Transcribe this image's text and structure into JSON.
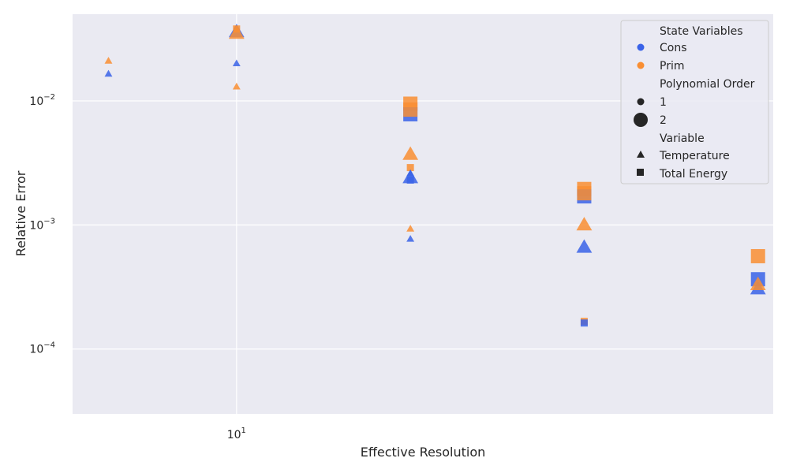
{
  "chart_data": {
    "type": "scatter",
    "xlabel": "Effective Resolution",
    "ylabel": "Relative Error",
    "x_scale": "log",
    "y_scale": "log",
    "xlim": [
      5.2,
      85
    ],
    "ylim": [
      3e-05,
      0.05
    ],
    "x_major_ticks": [
      {
        "value": 10,
        "base": "10",
        "exp": "1"
      }
    ],
    "y_major_ticks": [
      {
        "value": 0.01,
        "base": "10",
        "exp": "−2"
      },
      {
        "value": 0.001,
        "base": "10",
        "exp": "−3"
      },
      {
        "value": 0.0001,
        "base": "10",
        "exp": "−4"
      }
    ],
    "grid": true,
    "legend_position": "top-right",
    "colors": {
      "Cons": "#3a63e8",
      "Prim": "#f98e32",
      "background": "#eaeaf2",
      "grid": "#ffffff"
    },
    "legend": {
      "state_title": "State Variables",
      "state_items": [
        "Cons",
        "Prim"
      ],
      "order_title": "Polynomial Order",
      "order_items": [
        "1",
        "2"
      ],
      "variable_title": "Variable",
      "variable_items": [
        "Temperature",
        "Total Energy"
      ]
    },
    "points": [
      {
        "x": 6,
        "y": 0.0165,
        "state": "Cons",
        "order": 1,
        "variable": "Temperature"
      },
      {
        "x": 6,
        "y": 0.021,
        "state": "Prim",
        "order": 1,
        "variable": "Temperature"
      },
      {
        "x": 10,
        "y": 0.02,
        "state": "Cons",
        "order": 1,
        "variable": "Temperature"
      },
      {
        "x": 10,
        "y": 0.013,
        "state": "Prim",
        "order": 1,
        "variable": "Temperature"
      },
      {
        "x": 10,
        "y": 0.036,
        "state": "Cons",
        "order": 2,
        "variable": "Temperature"
      },
      {
        "x": 10,
        "y": 0.035,
        "state": "Prim",
        "order": 2,
        "variable": "Temperature"
      },
      {
        "x": 10,
        "y": 0.038,
        "state": "Prim",
        "order": 1,
        "variable": "Total Energy"
      },
      {
        "x": 20,
        "y": 0.0095,
        "state": "Prim",
        "order": 2,
        "variable": "Total Energy"
      },
      {
        "x": 20,
        "y": 0.0078,
        "state": "Cons",
        "order": 2,
        "variable": "Total Energy"
      },
      {
        "x": 20,
        "y": 0.0085,
        "state": "Prim",
        "order": 2,
        "variable": "Total Energy"
      },
      {
        "x": 20,
        "y": 0.0037,
        "state": "Prim",
        "order": 2,
        "variable": "Temperature"
      },
      {
        "x": 20,
        "y": 0.0029,
        "state": "Prim",
        "order": 1,
        "variable": "Total Energy"
      },
      {
        "x": 20,
        "y": 0.0026,
        "state": "Cons",
        "order": 1,
        "variable": "Temperature"
      },
      {
        "x": 20,
        "y": 0.0024,
        "state": "Cons",
        "order": 2,
        "variable": "Temperature"
      },
      {
        "x": 20,
        "y": 0.0023,
        "state": "Cons",
        "order": 1,
        "variable": "Total Energy"
      },
      {
        "x": 20,
        "y": 0.00093,
        "state": "Prim",
        "order": 1,
        "variable": "Temperature"
      },
      {
        "x": 20,
        "y": 0.00077,
        "state": "Cons",
        "order": 1,
        "variable": "Temperature"
      },
      {
        "x": 40,
        "y": 0.00195,
        "state": "Prim",
        "order": 2,
        "variable": "Total Energy"
      },
      {
        "x": 40,
        "y": 0.0017,
        "state": "Cons",
        "order": 2,
        "variable": "Total Energy"
      },
      {
        "x": 40,
        "y": 0.0018,
        "state": "Prim",
        "order": 2,
        "variable": "Total Energy"
      },
      {
        "x": 40,
        "y": 0.001,
        "state": "Prim",
        "order": 2,
        "variable": "Temperature"
      },
      {
        "x": 40,
        "y": 0.00066,
        "state": "Cons",
        "order": 2,
        "variable": "Temperature"
      },
      {
        "x": 40,
        "y": 0.000167,
        "state": "Prim",
        "order": 1,
        "variable": "Total Energy"
      },
      {
        "x": 40,
        "y": 0.000162,
        "state": "Cons",
        "order": 1,
        "variable": "Total Energy"
      },
      {
        "x": 80,
        "y": 0.00056,
        "state": "Prim",
        "order": 2,
        "variable": "Total Energy"
      },
      {
        "x": 80,
        "y": 0.000365,
        "state": "Cons",
        "order": 2,
        "variable": "Total Energy"
      },
      {
        "x": 80,
        "y": 0.000305,
        "state": "Cons",
        "order": 2,
        "variable": "Temperature"
      },
      {
        "x": 80,
        "y": 0.00033,
        "state": "Prim",
        "order": 2,
        "variable": "Temperature"
      }
    ]
  }
}
